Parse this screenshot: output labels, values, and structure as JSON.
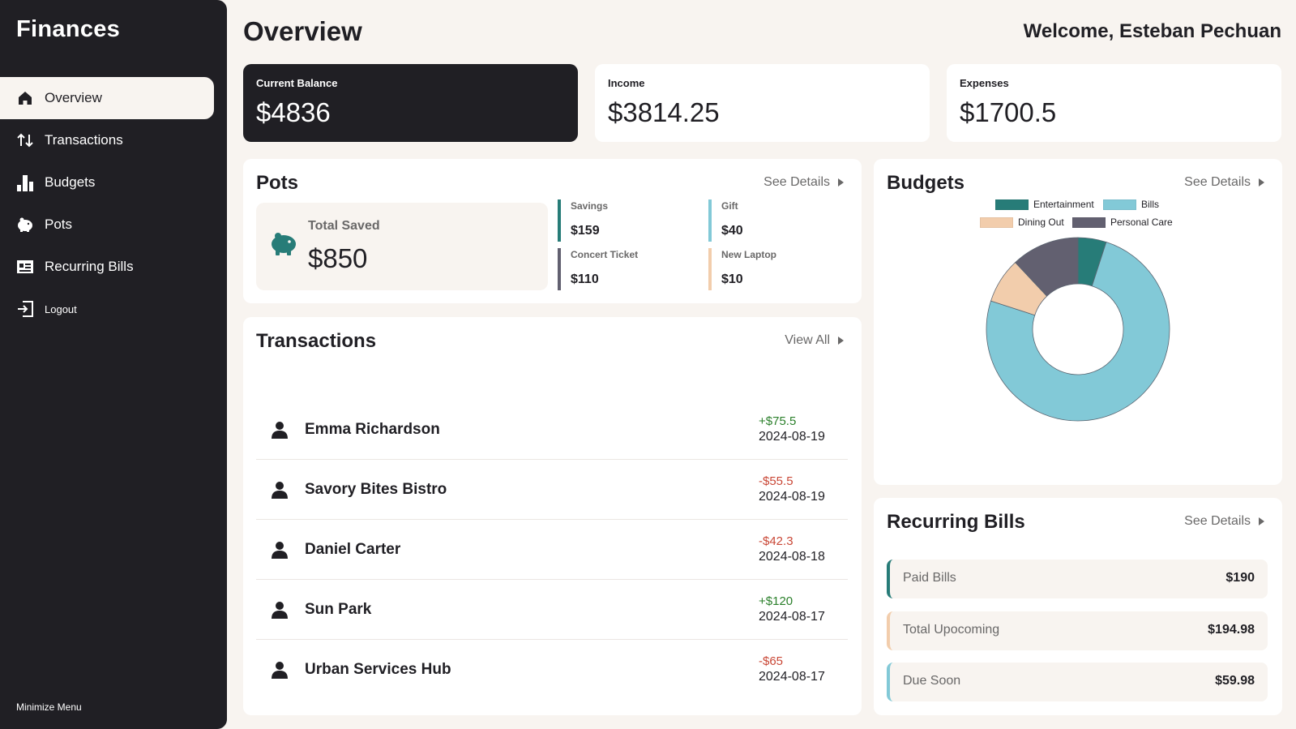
{
  "app": {
    "title": "Finances"
  },
  "sidebar": {
    "items": [
      {
        "label": "Overview",
        "icon": "home-icon",
        "active": true
      },
      {
        "label": "Transactions",
        "icon": "arrows-up-down-icon"
      },
      {
        "label": "Budgets",
        "icon": "bar-chart-icon"
      },
      {
        "label": "Pots",
        "icon": "piggy-bank-icon"
      },
      {
        "label": "Recurring Bills",
        "icon": "receipt-icon"
      },
      {
        "label": "Logout",
        "icon": "logout-icon"
      }
    ],
    "minimize_label": "Minimize Menu"
  },
  "header": {
    "title": "Overview",
    "welcome": "Welcome, Esteban Pechuan"
  },
  "summary": [
    {
      "label": "Current Balance",
      "value": "$4836"
    },
    {
      "label": "Income",
      "value": "$3814.25"
    },
    {
      "label": "Expenses",
      "value": "$1700.5"
    }
  ],
  "pots": {
    "title": "Pots",
    "link": "See Details",
    "total_label": "Total Saved",
    "total_value": "$850",
    "items": [
      {
        "name": "Savings",
        "amount": "$159",
        "color": "#277c78"
      },
      {
        "name": "Gift",
        "amount": "$40",
        "color": "#82c9d7"
      },
      {
        "name": "Concert Ticket",
        "amount": "$110",
        "color": "#626070"
      },
      {
        "name": "New Laptop",
        "amount": "$10",
        "color": "#f2cdac"
      }
    ]
  },
  "transactions": {
    "title": "Transactions",
    "link": "View All",
    "items": [
      {
        "name": "Emma Richardson",
        "amount": "+$75.5",
        "date": "2024-08-19",
        "positive": true
      },
      {
        "name": "Savory Bites Bistro",
        "amount": "-$55.5",
        "date": "2024-08-19",
        "positive": false
      },
      {
        "name": "Daniel Carter",
        "amount": "-$42.3",
        "date": "2024-08-18",
        "positive": false
      },
      {
        "name": "Sun Park",
        "amount": "+$120",
        "date": "2024-08-17",
        "positive": true
      },
      {
        "name": "Urban Services Hub",
        "amount": "-$65",
        "date": "2024-08-17",
        "positive": false
      }
    ]
  },
  "budgets": {
    "title": "Budgets",
    "link": "See Details"
  },
  "chart_data": {
    "type": "pie",
    "donut": true,
    "categories": [
      "Entertainment",
      "Bills",
      "Dining Out",
      "Personal Care"
    ],
    "values": [
      5,
      75,
      8,
      12
    ],
    "colors": [
      "#277c78",
      "#82c9d7",
      "#f2cdac",
      "#626070"
    ],
    "legend": "top",
    "title": ""
  },
  "recurring": {
    "title": "Recurring Bills",
    "link": "See Details",
    "items": [
      {
        "label": "Paid Bills",
        "value": "$190",
        "color": "#277c78"
      },
      {
        "label": "Total Upocoming",
        "value": "$194.98",
        "color": "#f2cdac"
      },
      {
        "label": "Due Soon",
        "value": "$59.98",
        "color": "#82c9d7"
      }
    ]
  }
}
